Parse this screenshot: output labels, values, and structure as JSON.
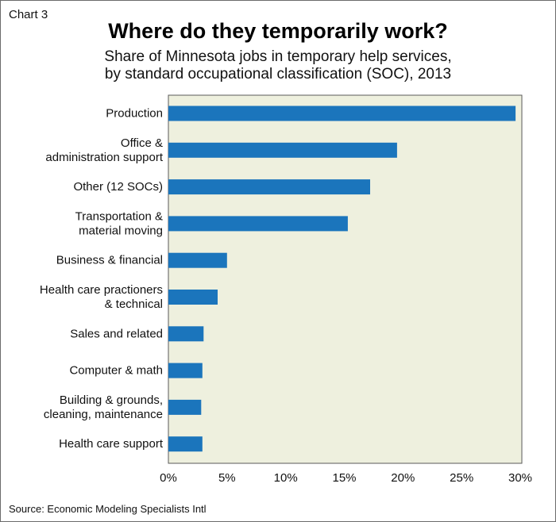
{
  "chart_label": "Chart 3",
  "source": "Source: Economic Modeling Specialists Intl",
  "colors": {
    "bar": "#1b75bc",
    "plot_background": "#eef0de",
    "plot_border": "#5a5a5a"
  },
  "chart_data": {
    "type": "bar",
    "orientation": "horizontal",
    "title": "Where do they temporarily work?",
    "subtitle": [
      "Share of Minnesota jobs in temporary help services,",
      "by standard occupational classification (SOC), 2013"
    ],
    "categories": [
      [
        "Production"
      ],
      [
        "Office &",
        "administration support"
      ],
      [
        "Other (12 SOCs)"
      ],
      [
        "Transportation &",
        "material moving"
      ],
      [
        "Business & financial"
      ],
      [
        "Health care practioners",
        "& technical"
      ],
      [
        "Sales and related"
      ],
      [
        "Computer & math"
      ],
      [
        "Building & grounds,",
        "cleaning, maintenance"
      ],
      [
        "Health care support"
      ]
    ],
    "values": [
      29.6,
      19.5,
      17.2,
      15.3,
      5.0,
      4.2,
      3.0,
      2.9,
      2.8,
      2.9
    ],
    "x_ticks": [
      "0%",
      "5%",
      "10%",
      "15%",
      "20%",
      "25%",
      "30%"
    ],
    "xlim": [
      0,
      30
    ],
    "grid": false,
    "legend": "none"
  }
}
